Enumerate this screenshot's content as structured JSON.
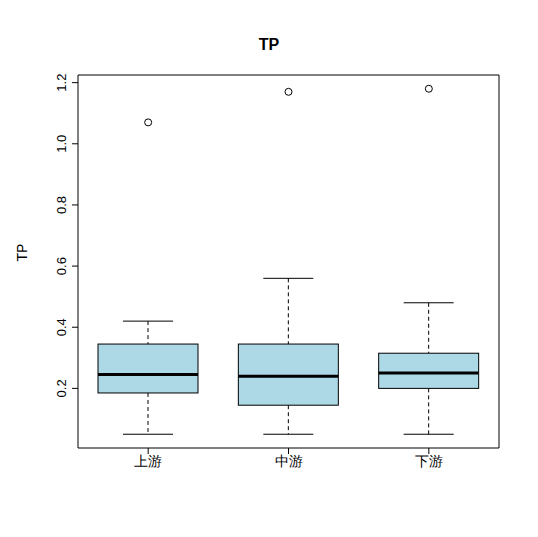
{
  "chart_data": {
    "type": "box",
    "title": "TP",
    "y_label": "TP",
    "categories": [
      "上游",
      "中游",
      "下游"
    ],
    "boxes": [
      {
        "min": 0.05,
        "q1": 0.185,
        "median": 0.245,
        "q3": 0.345,
        "max": 0.42,
        "outliers": [
          1.07
        ]
      },
      {
        "min": 0.05,
        "q1": 0.145,
        "median": 0.24,
        "q3": 0.345,
        "max": 0.56,
        "outliers": [
          1.17
        ]
      },
      {
        "min": 0.05,
        "q1": 0.2,
        "median": 0.25,
        "q3": 0.315,
        "max": 0.48,
        "outliers": [
          1.18
        ]
      }
    ],
    "color": "#add8e6",
    "ylim": [
      0.005,
      1.225
    ],
    "yticks": [
      0.2,
      0.4,
      0.6,
      0.8,
      {
        "value": 1.0,
        "label": "1.0"
      },
      1.2
    ],
    "grid": false
  }
}
